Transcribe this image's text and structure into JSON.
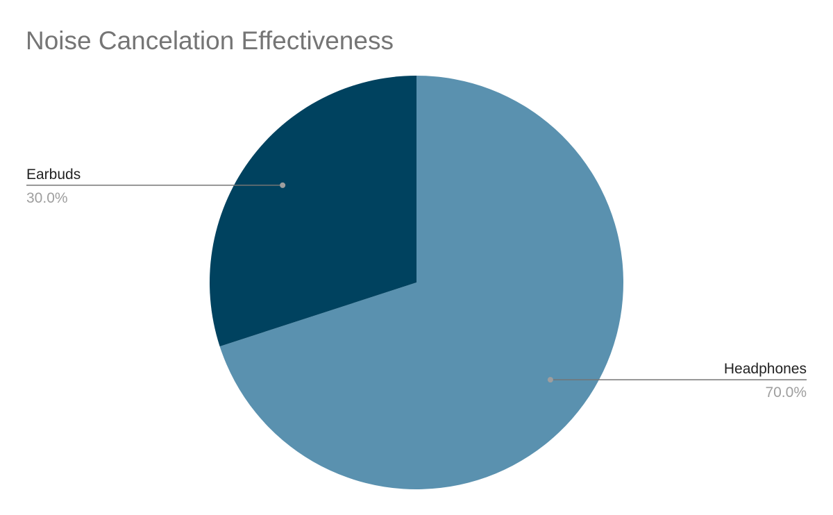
{
  "chart_data": {
    "type": "pie",
    "title": "Noise Cancelation Effectiveness",
    "slices": [
      {
        "label": "Headphones",
        "value": 70,
        "percent_label": "70.0%",
        "color": "#5a91af"
      },
      {
        "label": "Earbuds",
        "value": 30,
        "percent_label": "30.0%",
        "color": "#00425f"
      }
    ],
    "start_angle_deg": 0,
    "direction": "clockwise",
    "legend": "none",
    "data_labels": "outside-with-leader-lines",
    "leader_line_color": "#757575",
    "background": "#ffffff"
  }
}
